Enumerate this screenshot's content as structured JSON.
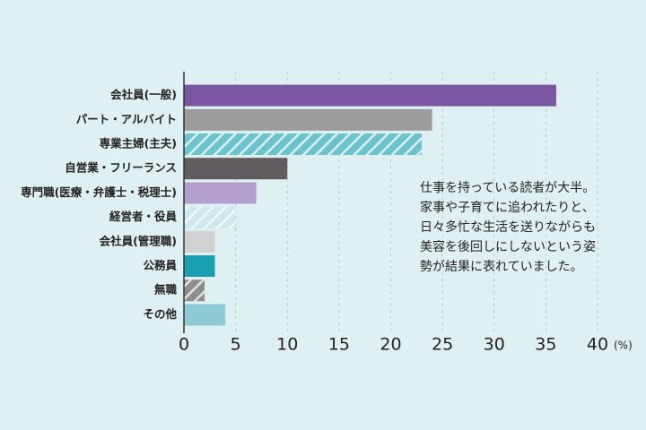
{
  "chart_data": {
    "type": "hbar",
    "categories": [
      "会社員(一般)",
      "パート・アルバイト",
      "専業主婦(主夫)",
      "自営業・フリーランス",
      "専門職(医療・弁護士・税理士)",
      "経営者・役員",
      "会社員(管理職)",
      "公務員",
      "無職",
      "その他"
    ],
    "values": [
      36,
      24,
      23,
      10,
      7,
      5,
      3,
      3,
      2,
      4
    ],
    "colors": [
      "#7b56a3",
      "#9c9c9c",
      "#6cc3cc",
      "#5f5b5e",
      "#b29fcf",
      "#cde8ef",
      "#d0d2d3",
      "#1a9fb0",
      "#8d8d8d",
      "#8ecad3"
    ],
    "hatched": [
      false,
      false,
      true,
      false,
      false,
      true,
      false,
      false,
      true,
      false
    ],
    "xlim": [
      0,
      40
    ],
    "xticks": [
      0,
      5,
      10,
      15,
      20,
      25,
      30,
      35,
      40
    ],
    "x_unit": "(%)",
    "grid": true,
    "annotation": [
      "仕事を持っている読者が大半。",
      "家事や子育てに追われたりと、",
      "日々多忙な生活を送りながらも",
      "美容を後回しにしないという姿",
      "勢が結果に表れていました。"
    ]
  }
}
